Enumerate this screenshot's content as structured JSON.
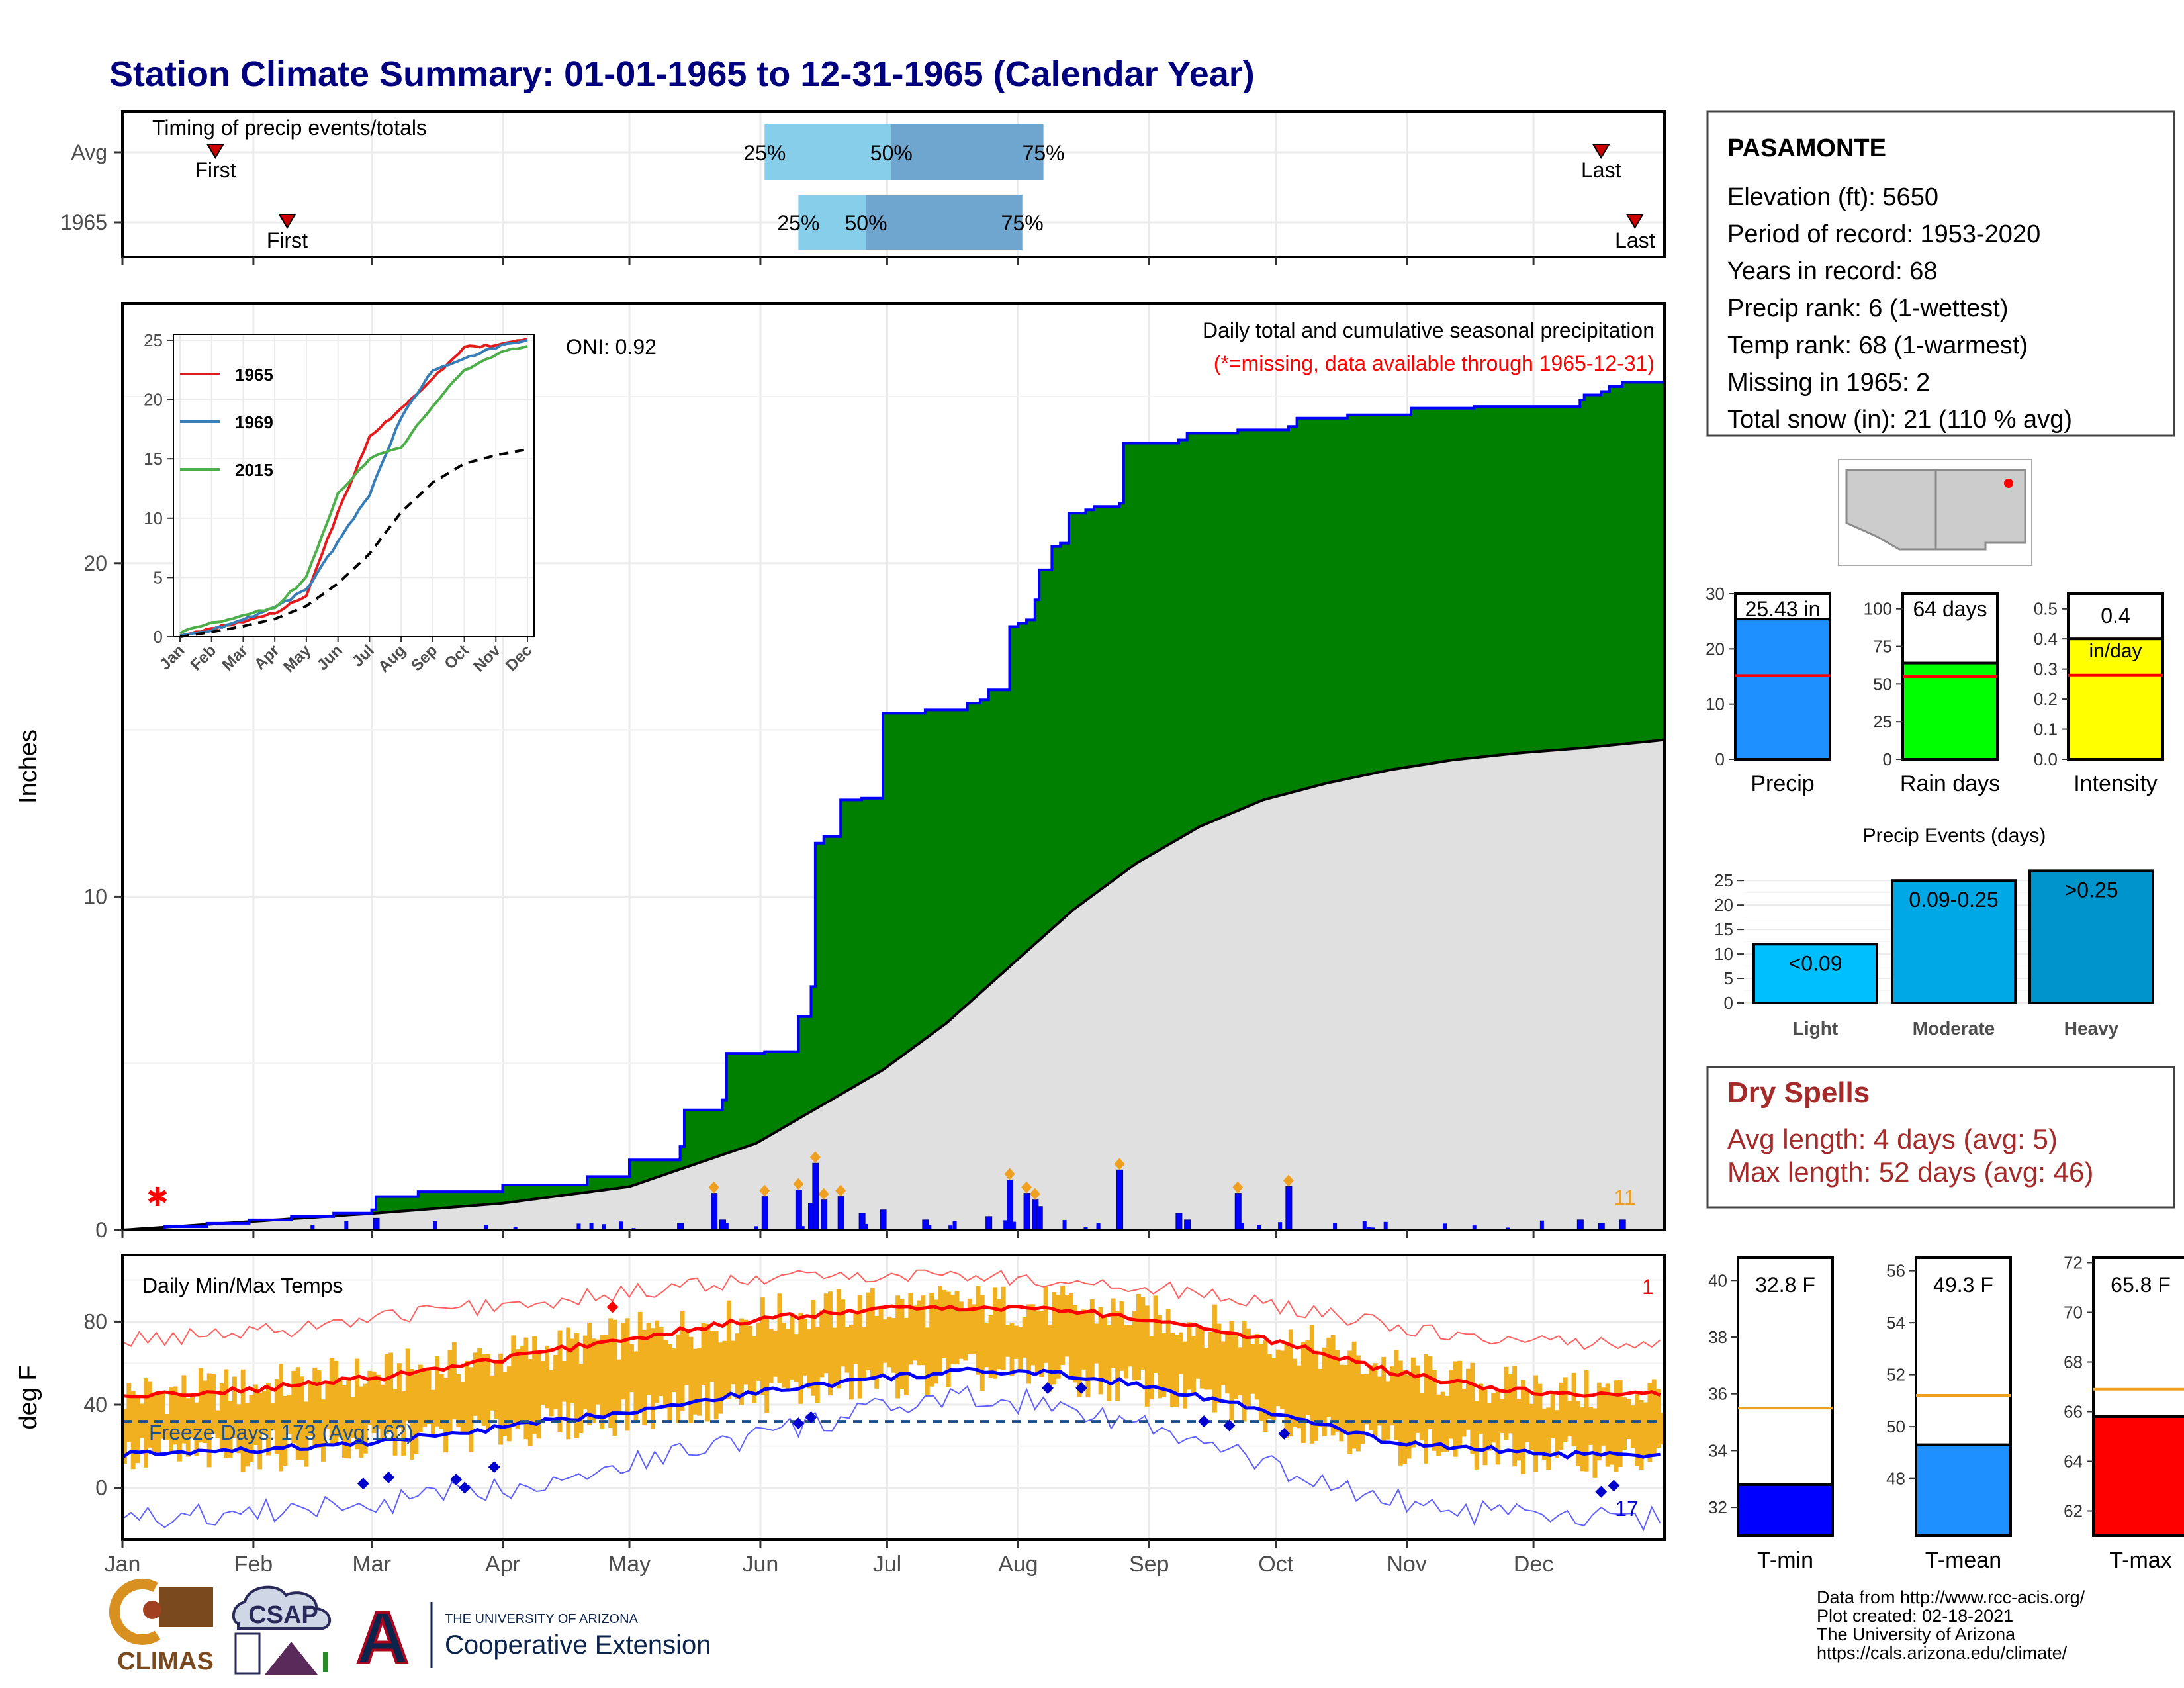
{
  "title": "Station Climate Summary: 01-01-1965 to 12-31-1965 (Calendar Year)",
  "colors": {
    "title": "#00007f",
    "green": "#008000",
    "blue": "#0000ff",
    "red": "#ff0000",
    "orange": "#f0b020",
    "light_blue": "#87ceeb",
    "mid_blue": "#6fa6cf",
    "grey_fill": "#e0e0e0",
    "dry_spells": "#a52a2a",
    "precip_bar": "#1e90ff",
    "rain_bar": "#00ff00",
    "intensity_bar": "#ffff00"
  },
  "month_labels": [
    "Jan",
    "Feb",
    "Mar",
    "Apr",
    "May",
    "Jun",
    "Jul",
    "Aug",
    "Sep",
    "Oct",
    "Nov",
    "Dec"
  ],
  "timing": {
    "title": "Timing of precip events/totals",
    "rows": [
      {
        "label": "Avg",
        "first_label": "First",
        "last_label": "Last",
        "p25_label": "25%",
        "p50_label": "50%",
        "p75_label": "75%",
        "first_doy": 22,
        "last_doy": 350,
        "p25_doy": 152,
        "p50_doy": 182,
        "p75_doy": 218
      },
      {
        "label": "1965",
        "first_label": "First",
        "last_label": "Last",
        "p25_label": "25%",
        "p50_label": "50%",
        "p75_label": "75%",
        "first_doy": 39,
        "last_doy": 358,
        "p25_doy": 160,
        "p50_doy": 176,
        "p75_doy": 213
      }
    ]
  },
  "precip_panel": {
    "ylabel": "Inches",
    "oni": "ONI: 0.92",
    "heading": "Daily total and cumulative seasonal precipitation",
    "missing_note": "(*=missing, data available through 1965-12-31)",
    "annotation_count": "11",
    "yticks": [
      0,
      10,
      20
    ],
    "ylim": [
      0,
      27.8
    ]
  },
  "inset": {
    "legend": [
      {
        "name": "1965",
        "color": "#e41a1c"
      },
      {
        "name": "1969",
        "color": "#377eb8"
      },
      {
        "name": "2015",
        "color": "#4daf4a"
      }
    ],
    "yticks": [
      0,
      5,
      10,
      15,
      20,
      25
    ],
    "ylim": [
      0,
      25.5
    ]
  },
  "temp_panel": {
    "ylabel": "deg F",
    "title": "Daily Min/Max Temps",
    "freeze_label": "Freeze Days: 173 (Avg:162)",
    "freeze_line": 32,
    "corner_max": "1",
    "corner_min": "17",
    "yticks": [
      0,
      40,
      80
    ],
    "ylim": [
      -25,
      112
    ]
  },
  "station": {
    "name": "PASAMONTE",
    "lines": [
      "Elevation (ft): 5650",
      "Period of record: 1953-2020",
      "Years in record: 68",
      "Precip rank: 6 (1-wettest)",
      "Temp rank: 68 (1-warmest)",
      "Missing in 1965: 2",
      "Total snow (in): 21 (110 % avg)"
    ]
  },
  "summary_bars": [
    {
      "label": "Precip",
      "value_label": "25.43 in",
      "value": 25.43,
      "avg": 15.2,
      "ymax": 30,
      "yticks": [
        0,
        10,
        20,
        30
      ],
      "tick_labels": [
        "0",
        "10",
        "20",
        "30"
      ],
      "color": "#1e90ff"
    },
    {
      "label": "Rain days",
      "value_label": "64 days",
      "value": 64,
      "avg": 55,
      "ymax": 110,
      "yticks": [
        0,
        25,
        50,
        75,
        100
      ],
      "tick_labels": [
        "0",
        "25",
        "50",
        "75",
        "100"
      ],
      "color": "#00ff00"
    },
    {
      "label": "Intensity",
      "value_label": "0.4",
      "sub_label": "in/day",
      "value": 0.4,
      "avg": 0.28,
      "ymax": 0.55,
      "yticks": [
        0,
        0.1,
        0.2,
        0.3,
        0.4,
        0.5
      ],
      "tick_labels": [
        "0.0",
        "0.1",
        "0.2",
        "0.3",
        "0.4",
        "0.5"
      ],
      "color": "#ffff00"
    }
  ],
  "precip_events": {
    "title": "Precip Events (days)",
    "categories": [
      "Light",
      "Moderate",
      "Heavy"
    ],
    "bar_labels": [
      "<0.09",
      "0.09-0.25",
      ">0.25"
    ],
    "values": [
      12,
      25,
      27
    ],
    "colors": [
      "#00bfff",
      "#00a8e6",
      "#0094cc"
    ],
    "yticks": [
      0,
      5,
      10,
      15,
      20,
      25
    ],
    "ymax": 28
  },
  "dry_spells": {
    "title": "Dry Spells",
    "avg_length": "Avg length: 4 days (avg: 5)",
    "max_length": "Max length: 52 days (avg: 46)"
  },
  "temp_bars": [
    {
      "label": "T-min",
      "value_label": "32.8 F",
      "value": 32.8,
      "avg": 35.5,
      "ymin": 31,
      "ymax": 40.8,
      "yticks": [
        32,
        34,
        36,
        38,
        40
      ],
      "color": "#0000ff"
    },
    {
      "label": "T-mean",
      "value_label": "49.3 F",
      "value": 49.3,
      "avg": 51.2,
      "ymin": 45.8,
      "ymax": 56.5,
      "yticks": [
        48,
        50,
        52,
        54,
        56
      ],
      "color": "#1e90ff"
    },
    {
      "label": "T-max",
      "value_label": "65.8 F",
      "value": 65.8,
      "avg": 66.9,
      "ymin": 61,
      "ymax": 72.2,
      "yticks": [
        62,
        64,
        66,
        68,
        70,
        72
      ],
      "color": "#ff0000"
    }
  ],
  "footer": {
    "logos": {
      "climas": "CLIMAS",
      "csap": "CSAP",
      "ua_small": "THE UNIVERSITY OF ARIZONA",
      "ua_big": "Cooperative Extension"
    },
    "credits": [
      "Data from http://www.rcc-acis.org/",
      "Plot created: 02-18-2021",
      "The University of Arizona",
      "https://cals.arizona.edu/climate/"
    ]
  },
  "chart_data": [
    {
      "type": "bar",
      "title": "Timing of precip events/totals",
      "categories": [
        "Avg",
        "1965"
      ],
      "first_doy": [
        22,
        39
      ],
      "p25_doy": [
        152,
        160
      ],
      "p50_doy": [
        182,
        176
      ],
      "p75_doy": [
        218,
        213
      ],
      "last_doy": [
        350,
        358
      ],
      "xlabel": "",
      "ylabel": ""
    },
    {
      "type": "area",
      "title": "Daily total and cumulative seasonal precipitation",
      "ylabel": "Inches",
      "ylim": [
        0,
        27.8
      ],
      "cumulative_1965": {
        "doy": [
          0,
          10,
          20,
          30,
          40,
          50,
          59,
          60,
          70,
          90,
          110,
          120,
          132,
          133,
          142,
          143,
          152,
          160,
          163,
          164,
          166,
          170,
          175,
          180,
          190,
          200,
          203,
          205,
          210,
          212,
          214,
          216,
          217,
          220,
          222,
          224,
          228,
          230,
          236,
          237,
          250,
          252,
          264,
          276,
          278,
          290,
          305,
          320,
          345,
          346,
          350,
          352,
          355,
          365
        ],
        "value": [
          0.0,
          0.1,
          0.2,
          0.3,
          0.4,
          0.5,
          0.6,
          1.0,
          1.15,
          1.35,
          1.6,
          2.1,
          2.5,
          3.6,
          3.9,
          5.3,
          5.35,
          6.4,
          7.3,
          11.6,
          11.8,
          12.9,
          12.95,
          15.5,
          15.6,
          15.8,
          15.9,
          16.2,
          18.1,
          18.2,
          18.3,
          18.9,
          19.8,
          20.5,
          20.6,
          21.5,
          21.6,
          21.7,
          21.8,
          23.6,
          23.7,
          23.9,
          24.0,
          24.1,
          24.35,
          24.45,
          24.65,
          24.7,
          24.9,
          25.05,
          25.15,
          25.3,
          25.43,
          25.43
        ]
      },
      "cumulative_avg": {
        "doy": [
          0,
          30,
          60,
          90,
          120,
          150,
          180,
          195,
          210,
          225,
          240,
          255,
          270,
          285,
          300,
          315,
          330,
          345,
          365
        ],
        "value": [
          0.0,
          0.25,
          0.5,
          0.8,
          1.3,
          2.6,
          4.8,
          6.2,
          7.9,
          9.6,
          11.0,
          12.1,
          12.9,
          13.4,
          13.8,
          14.1,
          14.3,
          14.45,
          14.7
        ]
      },
      "daily_events": {
        "doy": [
          60,
          132,
          140,
          142,
          152,
          160,
          163,
          164,
          166,
          170,
          175,
          180,
          190,
          205,
          210,
          214,
          216,
          217,
          236,
          250,
          252,
          264,
          276,
          345,
          350,
          355
        ],
        "value": [
          0.35,
          0.2,
          1.1,
          0.3,
          1.0,
          1.2,
          0.8,
          2.0,
          0.9,
          1.0,
          0.5,
          0.6,
          0.3,
          0.4,
          1.5,
          1.1,
          0.9,
          0.7,
          1.8,
          0.5,
          0.3,
          1.1,
          1.3,
          0.3,
          0.2,
          0.3
        ]
      }
    },
    {
      "type": "line",
      "title": "",
      "ylim": [
        0,
        25.5
      ],
      "x": [
        "Jan",
        "Feb",
        "Mar",
        "Apr",
        "May",
        "Jun",
        "Jul",
        "Aug",
        "Sep",
        "Oct",
        "Nov",
        "Dec"
      ],
      "series": [
        {
          "name": "1965",
          "values": [
            0.1,
            0.7,
            1.3,
            2.0,
            3.5,
            10.5,
            16.8,
            19.2,
            21.8,
            24.4,
            24.6,
            25.2
          ]
        },
        {
          "name": "1969",
          "values": [
            0.1,
            0.6,
            1.5,
            2.4,
            4.0,
            8.0,
            12.0,
            18.5,
            22.5,
            23.5,
            24.4,
            25.0
          ]
        },
        {
          "name": "2015",
          "values": [
            0.3,
            1.2,
            1.8,
            2.5,
            5.0,
            12.0,
            15.0,
            16.0,
            19.5,
            22.5,
            23.8,
            24.6
          ]
        },
        {
          "name": "",
          "values": [
            0.0,
            0.4,
            0.9,
            1.5,
            2.6,
            4.5,
            7.0,
            10.5,
            13.0,
            14.6,
            15.3,
            15.8
          ]
        }
      ]
    },
    {
      "type": "line",
      "title": "Daily Min/Max Temps",
      "ylabel": "deg F",
      "ylim": [
        -25,
        112
      ],
      "normal_max": {
        "doy": [
          0,
          30,
          60,
          90,
          120,
          150,
          180,
          200,
          220,
          240,
          260,
          280,
          300,
          320,
          340,
          365
        ],
        "value": [
          44,
          47,
          53,
          62,
          72,
          81,
          86,
          87,
          86,
          82,
          76,
          67,
          56,
          49,
          45,
          45
        ]
      },
      "normal_min": {
        "doy": [
          0,
          30,
          60,
          90,
          120,
          150,
          180,
          200,
          220,
          240,
          260,
          280,
          300,
          320,
          340,
          365
        ],
        "value": [
          16,
          18,
          22,
          29,
          37,
          46,
          53,
          56,
          55,
          50,
          42,
          32,
          22,
          19,
          16,
          15
        ]
      },
      "record_max": {
        "doy": [
          0,
          30,
          60,
          90,
          120,
          150,
          180,
          200,
          220,
          240,
          260,
          280,
          300,
          320,
          340,
          365
        ],
        "value": [
          71,
          74,
          82,
          88,
          94,
          100,
          103,
          102,
          100,
          97,
          92,
          85,
          78,
          72,
          70,
          70
        ]
      },
      "record_min": {
        "doy": [
          0,
          30,
          60,
          90,
          120,
          150,
          180,
          200,
          220,
          240,
          260,
          280,
          300,
          320,
          340,
          365
        ],
        "value": [
          -15,
          -12,
          -8,
          0,
          12,
          25,
          38,
          43,
          41,
          31,
          18,
          5,
          -6,
          -12,
          -15,
          -15
        ]
      },
      "freeze_days": 173,
      "freeze_days_avg": 162
    },
    {
      "type": "bar",
      "title": "",
      "categories": [
        "Precip"
      ],
      "values": [
        25.43
      ],
      "avg": [
        15.2
      ],
      "ylim": [
        0,
        30
      ]
    },
    {
      "type": "bar",
      "title": "",
      "categories": [
        "Rain days"
      ],
      "values": [
        64
      ],
      "avg": [
        55
      ],
      "ylim": [
        0,
        110
      ]
    },
    {
      "type": "bar",
      "title": "",
      "categories": [
        "Intensity"
      ],
      "values": [
        0.4
      ],
      "avg": [
        0.28
      ],
      "ylim": [
        0,
        0.55
      ]
    },
    {
      "type": "bar",
      "title": "Precip Events (days)",
      "categories": [
        "Light",
        "Moderate",
        "Heavy"
      ],
      "values": [
        12,
        25,
        27
      ],
      "ylim": [
        0,
        28
      ]
    },
    {
      "type": "bar",
      "title": "",
      "categories": [
        "T-min",
        "T-mean",
        "T-max"
      ],
      "values": [
        32.8,
        49.3,
        65.8
      ],
      "avg": [
        35.5,
        51.2,
        66.9
      ]
    }
  ]
}
